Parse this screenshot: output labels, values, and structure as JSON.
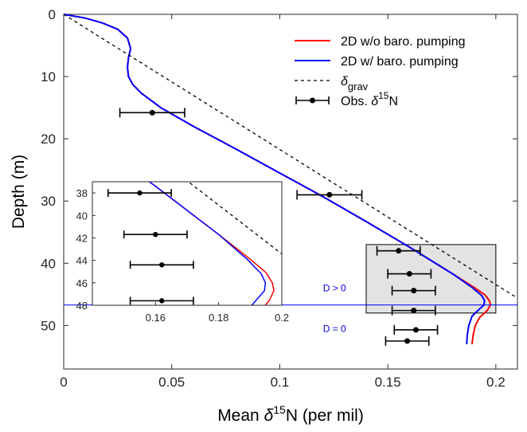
{
  "chart_data": {
    "type": "line",
    "xlabel": {
      "prefix": "Mean ",
      "delta": "δ",
      "sup": "15",
      "rest": "N (per mil)"
    },
    "ylabel": "Depth (m)",
    "xlim": [
      0,
      0.21
    ],
    "ylim": [
      0,
      57
    ],
    "y_reversed": true,
    "xticks": [
      0,
      0.05,
      0.1,
      0.15,
      0.2
    ],
    "xtick_labels": [
      "0",
      "0.05",
      "0.1",
      "0.15",
      "0.2"
    ],
    "yticks": [
      0,
      10,
      20,
      30,
      40,
      50
    ],
    "ytick_labels": [
      "0",
      "10",
      "20",
      "30",
      "40",
      "50"
    ],
    "grid": false,
    "legend_position": "top-right",
    "legend": [
      {
        "label": "2D w/o baro. pumping",
        "key": "red_line"
      },
      {
        "label": "2D w/ baro. pumping",
        "key": "blue_line"
      },
      {
        "label_delta": "δ",
        "label_sub": "grav",
        "key": "dashed"
      },
      {
        "label_prefix": "Obs. ",
        "label_delta": "δ",
        "label_sup": "15",
        "label_rest": "N",
        "key": "errorbar"
      }
    ],
    "series": [
      {
        "name": "2D w/o baro. pumping",
        "color": "#ff0000",
        "points": [
          [
            0,
            0
          ],
          [
            0.01,
            0.6
          ],
          [
            0.018,
            1.4
          ],
          [
            0.025,
            2.4
          ],
          [
            0.0295,
            3.8
          ],
          [
            0.031,
            5.5
          ],
          [
            0.03,
            7.0
          ],
          [
            0.0295,
            8.5
          ],
          [
            0.03,
            10.0
          ],
          [
            0.032,
            11.3
          ],
          [
            0.036,
            12.7
          ],
          [
            0.045,
            15.0
          ],
          [
            0.06,
            18.0
          ],
          [
            0.08,
            21.7
          ],
          [
            0.1,
            25.5
          ],
          [
            0.12,
            29.3
          ],
          [
            0.14,
            33.3
          ],
          [
            0.16,
            37.4
          ],
          [
            0.18,
            41.7
          ],
          [
            0.19,
            43.9
          ],
          [
            0.195,
            45.1
          ],
          [
            0.197,
            46.0
          ],
          [
            0.1975,
            46.7
          ],
          [
            0.196,
            47.6
          ],
          [
            0.1925,
            48.7
          ],
          [
            0.1905,
            50.0
          ],
          [
            0.1895,
            51.5
          ],
          [
            0.189,
            53.0
          ]
        ]
      },
      {
        "name": "2D w/ baro. pumping",
        "color": "#0000ff",
        "points": [
          [
            0,
            0
          ],
          [
            0.01,
            0.6
          ],
          [
            0.018,
            1.4
          ],
          [
            0.025,
            2.4
          ],
          [
            0.0295,
            3.8
          ],
          [
            0.031,
            5.5
          ],
          [
            0.03,
            7.0
          ],
          [
            0.0295,
            8.5
          ],
          [
            0.03,
            10.0
          ],
          [
            0.032,
            11.3
          ],
          [
            0.036,
            12.7
          ],
          [
            0.045,
            15.0
          ],
          [
            0.06,
            18.0
          ],
          [
            0.08,
            21.7
          ],
          [
            0.1,
            25.5
          ],
          [
            0.12,
            29.3
          ],
          [
            0.14,
            33.3
          ],
          [
            0.16,
            37.4
          ],
          [
            0.18,
            41.7
          ],
          [
            0.189,
            43.9
          ],
          [
            0.1935,
            45.2
          ],
          [
            0.1948,
            46.0
          ],
          [
            0.1945,
            46.7
          ],
          [
            0.192,
            47.5
          ],
          [
            0.189,
            48.5
          ],
          [
            0.1875,
            50.0
          ],
          [
            0.1868,
            51.5
          ],
          [
            0.1865,
            53.0
          ]
        ]
      },
      {
        "name": "δgrav",
        "color": "#000000",
        "dashed": true,
        "points": [
          [
            0,
            0
          ],
          [
            0.21,
            45.6
          ]
        ]
      }
    ],
    "observations": [
      {
        "x": 0.041,
        "y": 15.8,
        "xerr": 0.015
      },
      {
        "x": 0.123,
        "y": 29.0,
        "xerr": 0.015
      },
      {
        "x": 0.155,
        "y": 38.0,
        "xerr": 0.01
      },
      {
        "x": 0.16,
        "y": 41.7,
        "xerr": 0.01
      },
      {
        "x": 0.162,
        "y": 44.4,
        "xerr": 0.01
      },
      {
        "x": 0.162,
        "y": 47.6,
        "xerr": 0.01
      },
      {
        "x": 0.163,
        "y": 50.7,
        "xerr": 0.01
      },
      {
        "x": 0.159,
        "y": 52.5,
        "xerr": 0.01
      }
    ],
    "inset_region": {
      "x": [
        0.14,
        0.2
      ],
      "y": [
        37,
        48
      ]
    },
    "horizontal_line": {
      "y": 46.7,
      "color": "#0000ff"
    },
    "annotations": [
      {
        "text": "D > 0",
        "x": 0.12,
        "y": 44.0,
        "color": "#0000cc"
      },
      {
        "text": "D = 0",
        "x": 0.12,
        "y": 50.5,
        "color": "#0000cc"
      }
    ],
    "inset": {
      "xlim": [
        0.14,
        0.2
      ],
      "ylim": [
        37,
        48
      ],
      "xticks": [
        0.16,
        0.18,
        0.2
      ],
      "xtick_labels": [
        "0.16",
        "0.18",
        "0.2"
      ],
      "yticks": [
        38,
        40,
        42,
        44,
        46,
        48
      ],
      "ytick_labels": [
        "38",
        "40",
        "42",
        "44",
        "46",
        "48"
      ]
    }
  }
}
